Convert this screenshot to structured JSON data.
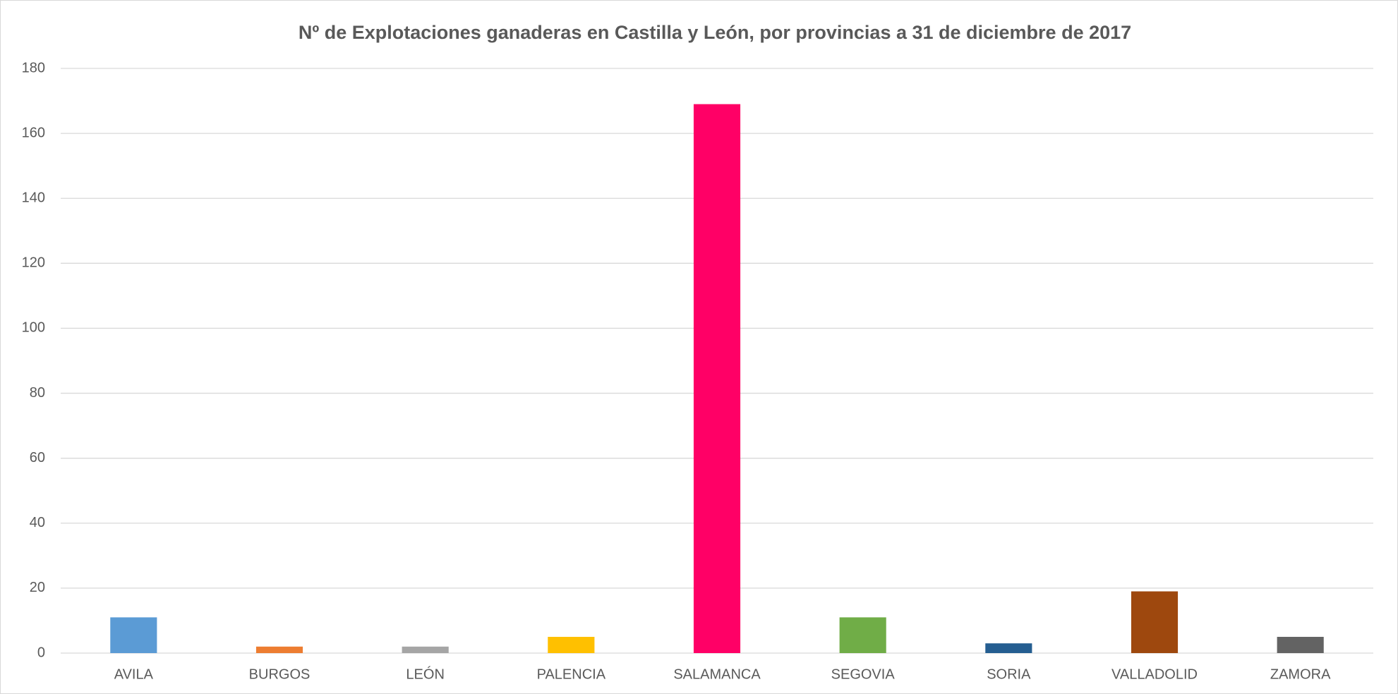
{
  "chart_data": {
    "type": "bar",
    "title": "Nº de Explotaciones ganaderas en Castilla y León, por provincias a 31 de diciembre de 2017",
    "categories": [
      "AVILA",
      "BURGOS",
      "LEÓN",
      "PALENCIA",
      "SALAMANCA",
      "SEGOVIA",
      "SORIA",
      "VALLADOLID",
      "ZAMORA"
    ],
    "values": [
      11,
      2,
      2,
      5,
      169,
      11,
      3,
      19,
      5
    ],
    "colors": [
      "#5b9bd5",
      "#ed7d31",
      "#a5a5a5",
      "#ffc000",
      "#ff0066",
      "#70ad47",
      "#255e91",
      "#9e480e",
      "#636363"
    ],
    "ylim": [
      0,
      180
    ],
    "yticks": [
      0,
      20,
      40,
      60,
      80,
      100,
      120,
      140,
      160,
      180
    ],
    "grid": true
  }
}
